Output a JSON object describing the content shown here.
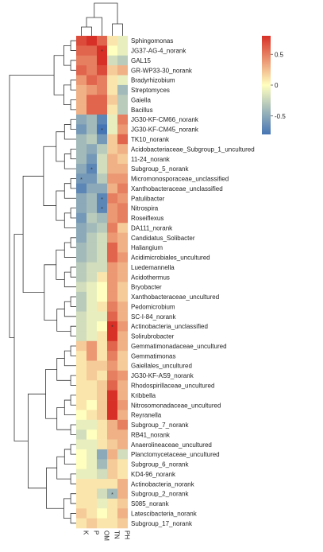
{
  "chart_data": {
    "type": "heatmap",
    "columns": [
      "K",
      "P",
      "OM",
      "TN",
      "PH"
    ],
    "rows": [
      "Sphingomonas",
      "JG37-AG-4_norank",
      "GAL15",
      "GR-WP33-30_norank",
      "Bradyrhizobium",
      "Streptomyces",
      "Gaiella",
      "Bacillus",
      "JG30-KF-CM66_norank",
      "JG30-KF-CM45_norank",
      "TK10_norank",
      "Acidobacteriaceae_Subgroup_1_uncultured",
      "11-24_norank",
      "Subgroup_5_norank",
      "Micromonosporaceae_unclassified",
      "Xanthobacteraceae_unclassified",
      "Patulibacter",
      "Nitrospira",
      "Roseiflexus",
      "DA111_norank",
      "Candidatus_Solibacter",
      "Haliangium",
      "Acidimicrobiales_uncultured",
      "Luedemannella",
      "Acidothermus",
      "Bryobacter",
      "Xanthobacteraceae_uncultured",
      "Pedomicrobium",
      "SC-I-84_norank",
      "Actinobacteria_unclassified",
      "Solirubrobacter",
      "Gemmatimonadaceae_uncultured",
      "Gemmatimonas",
      "Gaiellales_uncultured",
      "JG30-KF-AS9_norank",
      "Rhodospirillaceae_uncultured",
      "Kribbella",
      "Nitrosomonadaceae_uncultured",
      "Reyranella",
      "Subgroup_7_norank",
      "RB41_norank",
      "Anaerolineaceae_uncultured",
      "Planctomycetaceae_uncultured",
      "Subgroup_6_norank",
      "KD4-96_norank",
      "Actinobacteria_norank",
      "Subgroup_2_norank",
      "S085_norank",
      "Latescibacteria_norank",
      "Subgroup_17_norank"
    ],
    "values": [
      [
        0.7,
        0.8,
        0.6,
        0.1,
        -0.1
      ],
      [
        0.6,
        0.6,
        0.8,
        0.0,
        -0.1
      ],
      [
        0.5,
        0.5,
        0.8,
        -0.2,
        -0.3
      ],
      [
        0.6,
        0.5,
        0.7,
        0.2,
        0.3
      ],
      [
        0.4,
        0.6,
        0.5,
        0.1,
        -0.1
      ],
      [
        0.3,
        0.4,
        0.5,
        0.1,
        -0.4
      ],
      [
        0.3,
        0.6,
        0.6,
        0.2,
        -0.3
      ],
      [
        0.3,
        0.6,
        0.6,
        0.1,
        -0.3
      ],
      [
        -0.5,
        -0.4,
        -0.7,
        -0.1,
        0.5
      ],
      [
        -0.6,
        -0.4,
        -0.8,
        -0.1,
        0.4
      ],
      [
        -0.4,
        -0.3,
        -0.6,
        0.2,
        0.6
      ],
      [
        -0.4,
        -0.5,
        -0.3,
        0.2,
        0.3
      ],
      [
        -0.4,
        -0.6,
        -0.2,
        0.3,
        0.2
      ],
      [
        -0.5,
        -0.7,
        -0.2,
        0.3,
        0.3
      ],
      [
        -0.6,
        -0.6,
        -0.3,
        0.4,
        0.4
      ],
      [
        -0.7,
        -0.5,
        -0.5,
        0.3,
        0.5
      ],
      [
        -0.5,
        -0.4,
        -0.7,
        0.5,
        0.4
      ],
      [
        -0.5,
        -0.4,
        -0.7,
        0.4,
        0.5
      ],
      [
        -0.6,
        -0.3,
        -0.4,
        0.4,
        0.5
      ],
      [
        -0.5,
        -0.4,
        -0.3,
        0.5,
        0.2
      ],
      [
        -0.5,
        -0.3,
        -0.2,
        0.4,
        0.3
      ],
      [
        -0.4,
        -0.3,
        -0.2,
        0.6,
        0.3
      ],
      [
        -0.4,
        -0.3,
        -0.2,
        0.6,
        0.4
      ],
      [
        -0.3,
        -0.2,
        -0.2,
        0.4,
        0.3
      ],
      [
        -0.3,
        -0.2,
        0.1,
        0.4,
        0.3
      ],
      [
        -0.2,
        -0.1,
        0.0,
        0.4,
        0.2
      ],
      [
        -0.3,
        -0.1,
        0.0,
        0.4,
        0.2
      ],
      [
        -0.3,
        -0.1,
        0.1,
        0.5,
        0.3
      ],
      [
        -0.2,
        -0.1,
        -0.1,
        0.6,
        0.3
      ],
      [
        -0.2,
        -0.1,
        0.0,
        0.9,
        0.4
      ],
      [
        -0.2,
        -0.1,
        0.1,
        0.8,
        0.3
      ],
      [
        0.2,
        0.4,
        0.1,
        0.6,
        0.3
      ],
      [
        0.1,
        0.4,
        0.1,
        0.5,
        0.2
      ],
      [
        0.1,
        0.2,
        0.2,
        0.4,
        0.2
      ],
      [
        0.1,
        0.2,
        0.1,
        0.5,
        0.4
      ],
      [
        0.1,
        0.1,
        0.2,
        0.6,
        0.3
      ],
      [
        0.1,
        0.1,
        0.2,
        0.8,
        0.3
      ],
      [
        0.1,
        0.0,
        0.2,
        0.8,
        0.4
      ],
      [
        0.0,
        0.1,
        0.2,
        0.8,
        0.3
      ],
      [
        -0.1,
        -0.1,
        0.1,
        0.3,
        0.5
      ],
      [
        -0.2,
        0.0,
        0.1,
        0.3,
        0.3
      ],
      [
        -0.1,
        -0.1,
        0.1,
        0.2,
        0.3
      ],
      [
        0.0,
        -0.1,
        -0.5,
        0.3,
        -0.2
      ],
      [
        0.0,
        -0.1,
        -0.4,
        0.2,
        0.1
      ],
      [
        -0.1,
        -0.1,
        -0.2,
        0.2,
        0.1
      ],
      [
        0.1,
        0.1,
        0.1,
        0.1,
        0.3
      ],
      [
        0.1,
        0.1,
        -0.2,
        -0.4,
        0.3
      ],
      [
        0.1,
        0.1,
        -0.1,
        0.1,
        0.2
      ],
      [
        0.2,
        0.1,
        0.0,
        0.1,
        0.3
      ],
      [
        0.1,
        0.2,
        0.1,
        0.1,
        0.2
      ]
    ],
    "stars": [
      [
        1,
        2,
        "*"
      ],
      [
        9,
        2,
        "*"
      ],
      [
        13,
        1,
        "*"
      ],
      [
        14,
        0,
        "*"
      ],
      [
        16,
        2,
        "*"
      ],
      [
        17,
        2,
        "*"
      ],
      [
        29,
        3,
        "*"
      ],
      [
        46,
        3,
        "*"
      ]
    ],
    "color_range": [
      -0.8,
      0.8
    ],
    "colorbar_ticks": [
      0.5,
      0,
      -0.5
    ],
    "colorbar_tick_labels": [
      "0.5",
      "0",
      "-0.5"
    ],
    "colors": {
      "low": "#4575b4",
      "mid": "#ffffbf",
      "high": "#d73027"
    }
  }
}
